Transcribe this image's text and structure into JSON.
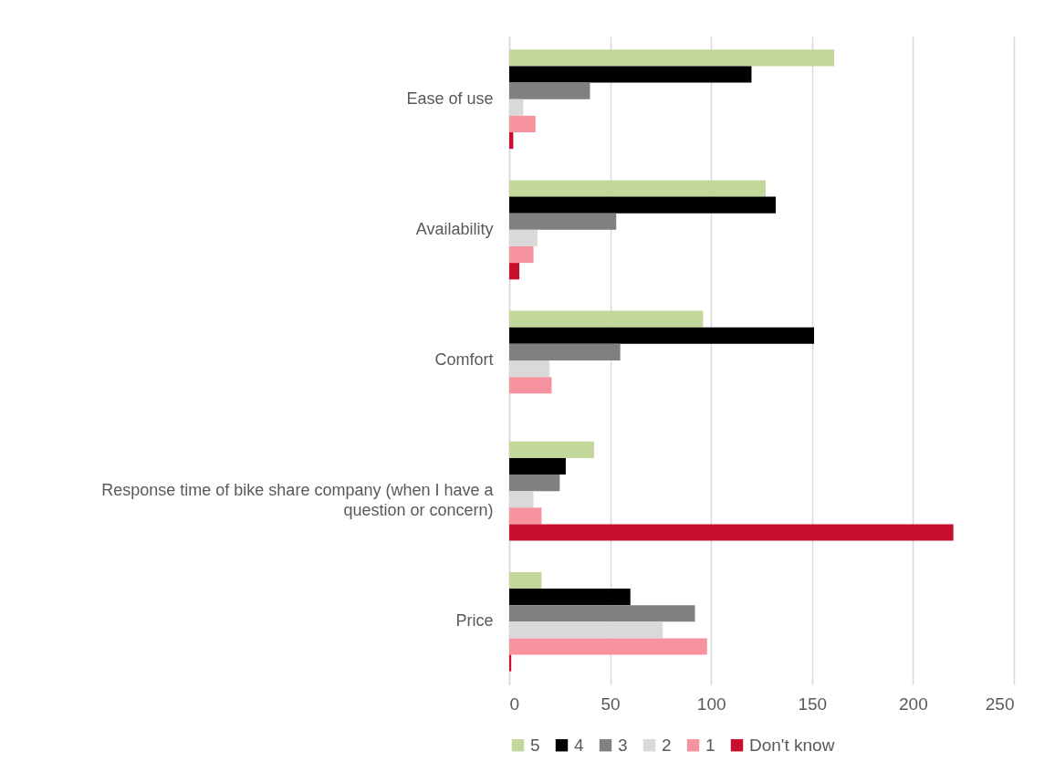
{
  "chart_data": {
    "type": "bar",
    "orientation": "horizontal",
    "categories": [
      "Ease of use",
      "Availability",
      "Comfort",
      "Response time of bike share company  (when I have a question or concern)",
      "Price"
    ],
    "series": [
      {
        "name": "5",
        "color": "#c4d79b",
        "values": [
          161,
          127,
          96,
          42,
          16
        ]
      },
      {
        "name": "4",
        "color": "#000000",
        "values": [
          120,
          132,
          151,
          28,
          60
        ]
      },
      {
        "name": "3",
        "color": "#808080",
        "values": [
          40,
          53,
          55,
          25,
          92
        ]
      },
      {
        "name": "2",
        "color": "#d9d9d9",
        "values": [
          7,
          14,
          20,
          12,
          76
        ]
      },
      {
        "name": "1",
        "color": "#f7939f",
        "values": [
          13,
          12,
          21,
          16,
          98
        ]
      },
      {
        "name": "Don't know",
        "color": "#c8102e",
        "values": [
          2,
          5,
          0,
          220,
          1
        ]
      }
    ],
    "xlim": [
      0,
      250
    ],
    "xticks": [
      0,
      50,
      100,
      150,
      200,
      250
    ],
    "grid": "x",
    "legend": "bottom"
  }
}
